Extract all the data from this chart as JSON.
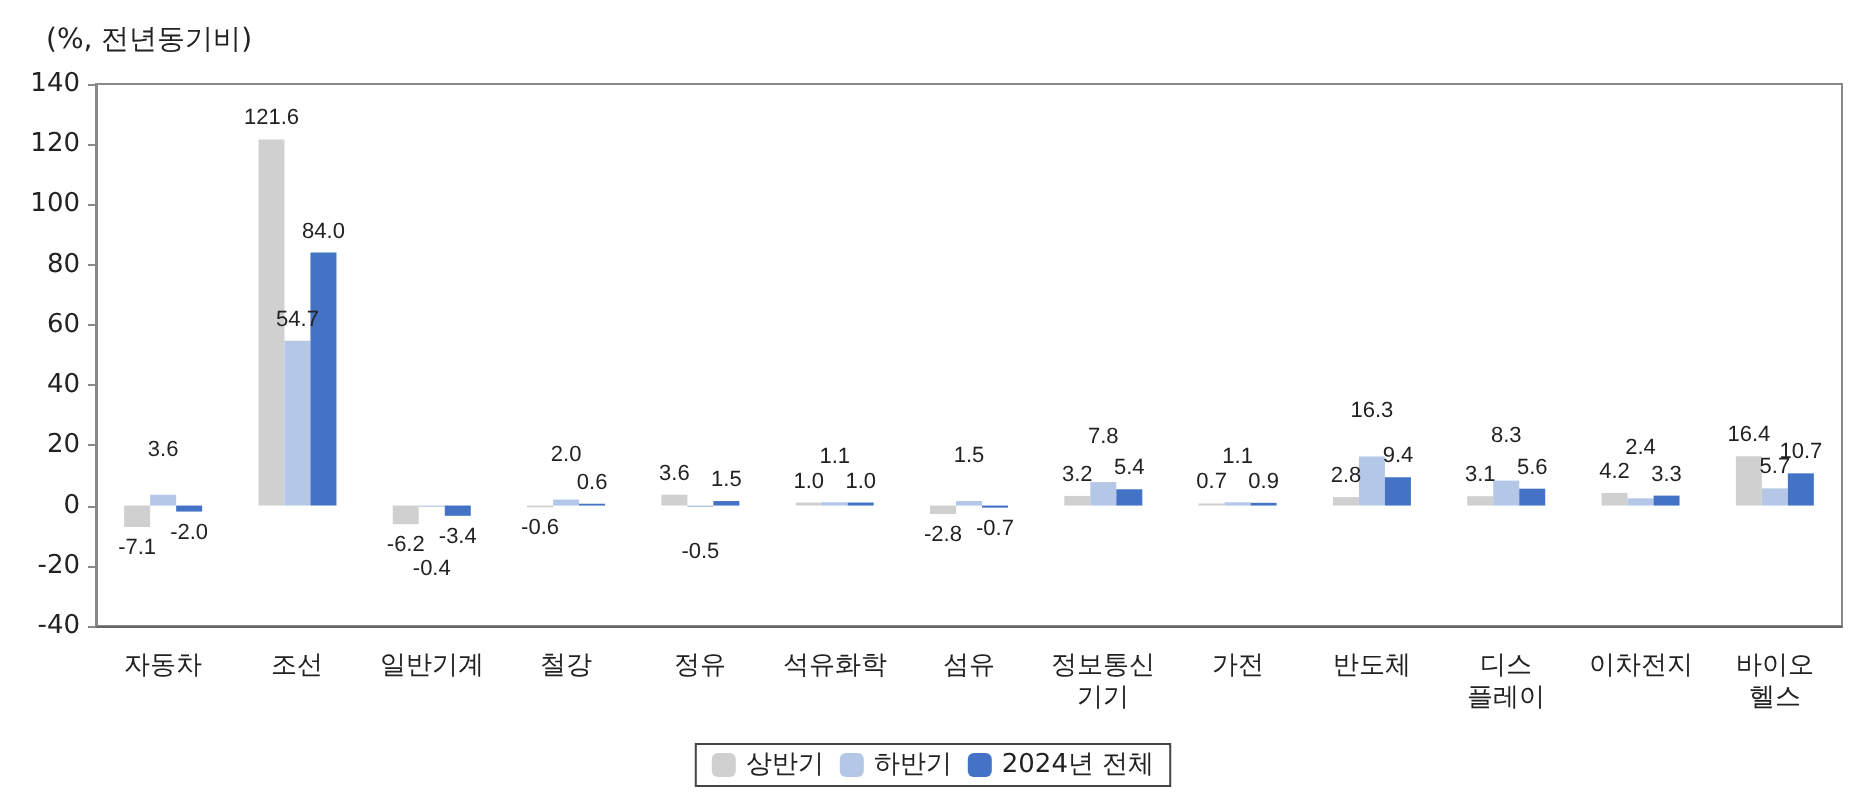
{
  "chart_data": {
    "type": "bar",
    "ylabel": "(%, 전년동기비)",
    "categories": [
      "자동차",
      "조선",
      "일반기계",
      "철강",
      "정유",
      "석유화학",
      "섬유",
      "정보통신\n기기",
      "가전",
      "반도체",
      "디스\n플레이",
      "이차전지",
      "바이오\n헬스"
    ],
    "series": [
      {
        "name": "상반기",
        "color": "#d0d0d0",
        "values": [
          -7.1,
          121.6,
          -6.2,
          -0.6,
          3.6,
          1.0,
          -2.8,
          3.2,
          0.7,
          2.8,
          3.1,
          4.2,
          16.4
        ],
        "value_labels": [
          "-7.1",
          "121.6",
          "-6.2",
          "-0.6",
          "3.6",
          "1.0",
          "-2.8",
          "3.2",
          "0.7",
          "2.8",
          "3.1",
          "4.2",
          "16.4"
        ]
      },
      {
        "name": "하반기",
        "color": "#b4c7e7",
        "values": [
          3.6,
          54.7,
          -0.4,
          2.0,
          -0.5,
          1.1,
          1.5,
          7.8,
          1.1,
          16.3,
          8.3,
          2.4,
          5.7
        ],
        "value_labels": [
          "3.6",
          "54.7",
          "-0.4",
          "2.0",
          "-0.5",
          "1.1",
          "1.5",
          "7.8",
          "1.1",
          "16.3",
          "8.3",
          "2.4",
          "5.7"
        ]
      },
      {
        "name": "2024년 전체",
        "color": "#4472c4",
        "values": [
          -2.0,
          84.0,
          -3.4,
          0.6,
          1.5,
          1.0,
          -0.7,
          5.4,
          0.9,
          9.4,
          5.6,
          3.3,
          10.7
        ],
        "value_labels": [
          "-2.0",
          "84.0",
          "-3.4",
          "0.6",
          "1.5",
          "1.0",
          "-0.7",
          "5.4",
          "0.9",
          "9.4",
          "5.6",
          "3.3",
          "10.7"
        ]
      }
    ],
    "ylim": [
      -40,
      140
    ],
    "yticks": [
      -40,
      -20,
      0,
      20,
      40,
      60,
      80,
      100,
      120,
      140
    ],
    "grid": false,
    "legend": "bottom"
  }
}
